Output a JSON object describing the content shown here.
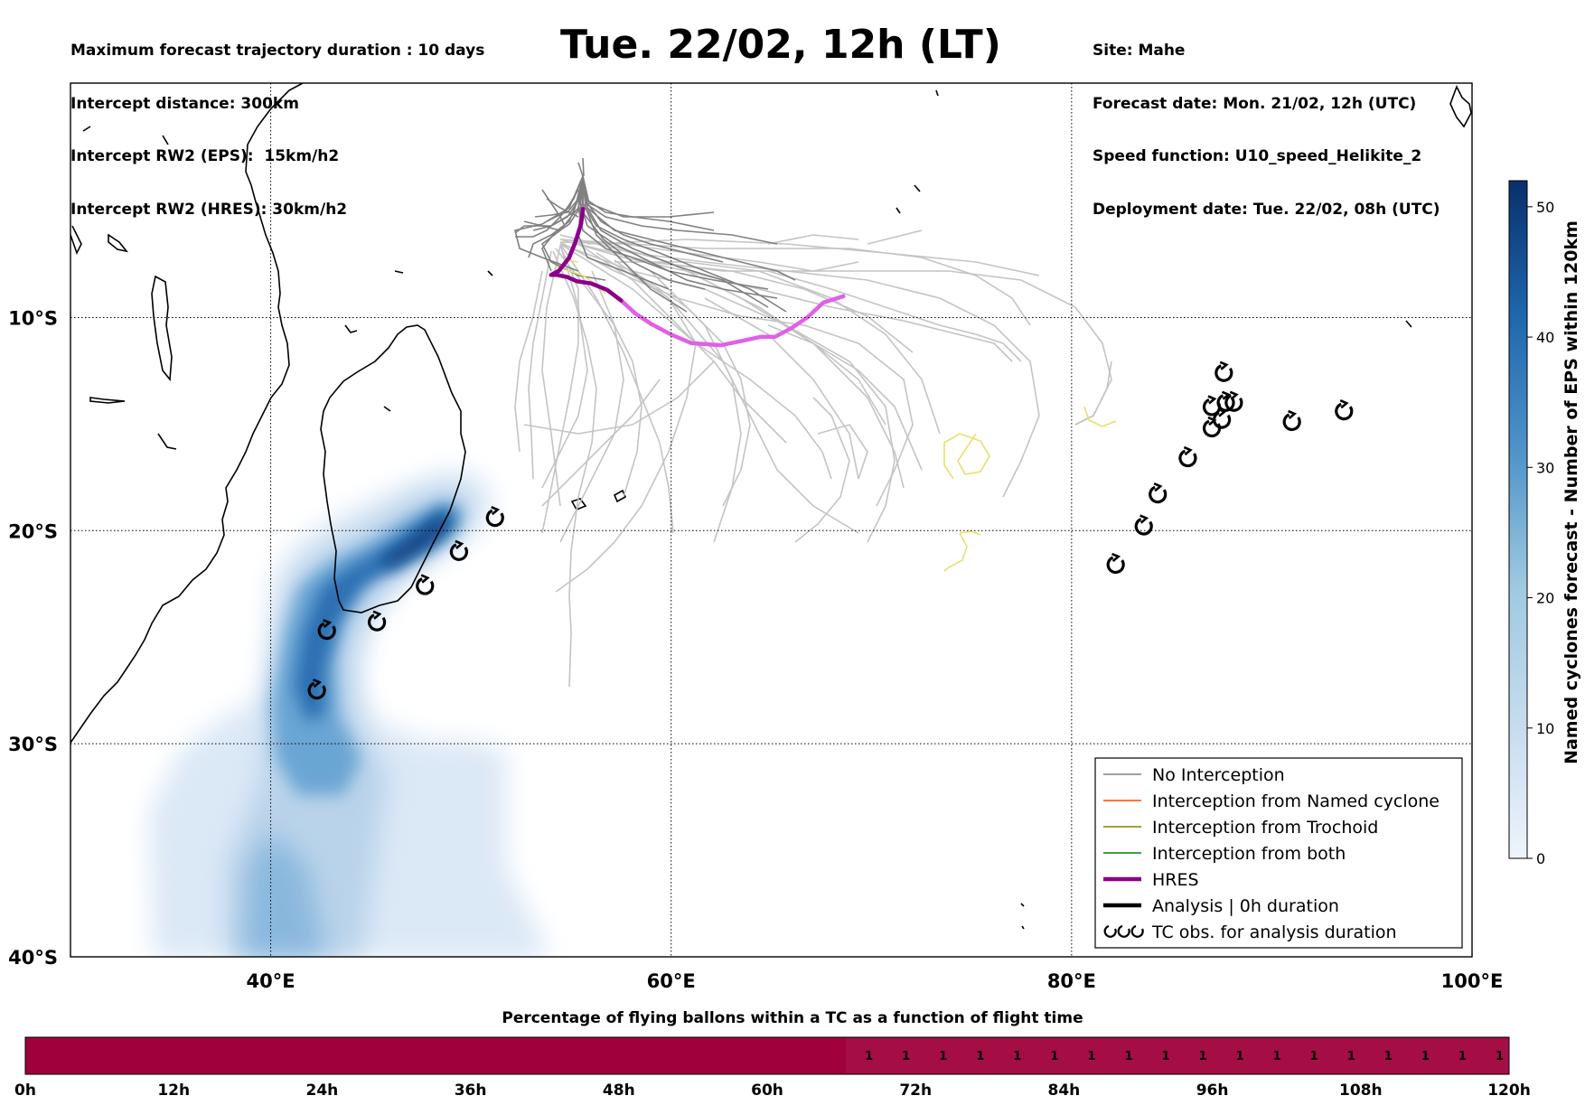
{
  "header": {
    "left_lines": [
      "Maximum forecast trajectory duration : 10 days",
      "Intercept distance: 300km",
      "Intercept RW2 (EPS):  15km/h2",
      "Intercept RW2 (HRES): 30km/h2"
    ],
    "title": "Tue. 22/02, 12h (LT)",
    "right_lines": [
      "Site: Mahe",
      "Forecast date: Mon. 21/02, 12h (UTC)",
      "Speed function: U10_speed_Helikite_2",
      "Deployment date: Tue. 22/02, 08h (UTC)"
    ]
  },
  "map": {
    "lon_range": [
      30,
      100
    ],
    "lat_range": [
      -40,
      1
    ],
    "lon_ticks": [
      "40°E",
      "60°E",
      "80°E",
      "100°E"
    ],
    "lat_ticks": [
      "10°S",
      "20°S",
      "30°S",
      "40°S"
    ],
    "colorbar": {
      "label": "Named cyclones forecast - Number of EPS within 120km",
      "ticks": [
        "0",
        "10",
        "20",
        "30",
        "40",
        "50"
      ],
      "range": [
        0,
        52
      ],
      "colors": [
        "#eef4fb",
        "#c6dbef",
        "#9ecae1",
        "#6baed6",
        "#2171b5",
        "#08306b"
      ]
    },
    "legend": [
      {
        "label": "No Interception",
        "color": "#808080",
        "style": "thin"
      },
      {
        "label": "Interception from Named cyclone",
        "color": "#ff4500",
        "style": "thin"
      },
      {
        "label": "Interception from Trochoid",
        "color": "#808000",
        "style": "thin"
      },
      {
        "label": "Interception from both",
        "color": "#008000",
        "style": "thin"
      },
      {
        "label": "HRES",
        "color": "#8b008b",
        "style": "thick"
      },
      {
        "label": "Analysis | 0h duration",
        "color": "#000000",
        "style": "thick"
      },
      {
        "label": "TC obs. for analysis duration",
        "color": "#000000",
        "style": "symbol"
      }
    ],
    "tc_obs": [
      [
        42.3,
        -27.5
      ],
      [
        42.8,
        -24.7
      ],
      [
        45.3,
        -24.3
      ],
      [
        47.7,
        -22.6
      ],
      [
        49.4,
        -21.0
      ],
      [
        51.2,
        -19.4
      ],
      [
        82.2,
        -21.6
      ],
      [
        83.6,
        -19.8
      ],
      [
        84.3,
        -18.3
      ],
      [
        85.8,
        -16.6
      ],
      [
        87.0,
        -15.2
      ],
      [
        87.5,
        -14.8
      ],
      [
        87.7,
        -14.0
      ],
      [
        88.1,
        -14.0
      ],
      [
        87.0,
        -14.2
      ],
      [
        87.6,
        -12.6
      ],
      [
        91.0,
        -14.9
      ],
      [
        93.6,
        -14.4
      ]
    ],
    "hres_track": [
      [
        55.6,
        -4.9
      ],
      [
        55.5,
        -5.6
      ],
      [
        55.2,
        -6.5
      ],
      [
        54.9,
        -7.2
      ],
      [
        54.4,
        -7.8
      ],
      [
        54.0,
        -8.0
      ],
      [
        54.3,
        -8.0
      ],
      [
        54.8,
        -8.1
      ],
      [
        55.3,
        -8.3
      ],
      [
        56.0,
        -8.4
      ],
      [
        56.8,
        -8.7
      ],
      [
        57.5,
        -9.2
      ],
      [
        58.2,
        -9.8
      ],
      [
        59.0,
        -10.3
      ],
      [
        60.0,
        -10.8
      ],
      [
        61.0,
        -11.2
      ],
      [
        62.5,
        -11.3
      ],
      [
        63.5,
        -11.1
      ],
      [
        64.5,
        -10.9
      ],
      [
        65.2,
        -10.9
      ],
      [
        66.0,
        -10.5
      ],
      [
        66.8,
        -10.0
      ],
      [
        67.6,
        -9.3
      ],
      [
        68.6,
        -9.0
      ]
    ]
  },
  "bottom": {
    "title": "Percentage of flying ballons within a TC as a function of flight time",
    "time_ticks": [
      "0h",
      "12h",
      "24h",
      "36h",
      "48h",
      "60h",
      "72h",
      "84h",
      "96h",
      "108h",
      "120h"
    ],
    "bar_color": "#a0003c",
    "bar_values": [
      "1",
      "1",
      "1",
      "1",
      "1",
      "1",
      "1",
      "1",
      "1",
      "1",
      "1",
      "1",
      "1",
      "1",
      "1",
      "1",
      "1",
      "1"
    ]
  }
}
